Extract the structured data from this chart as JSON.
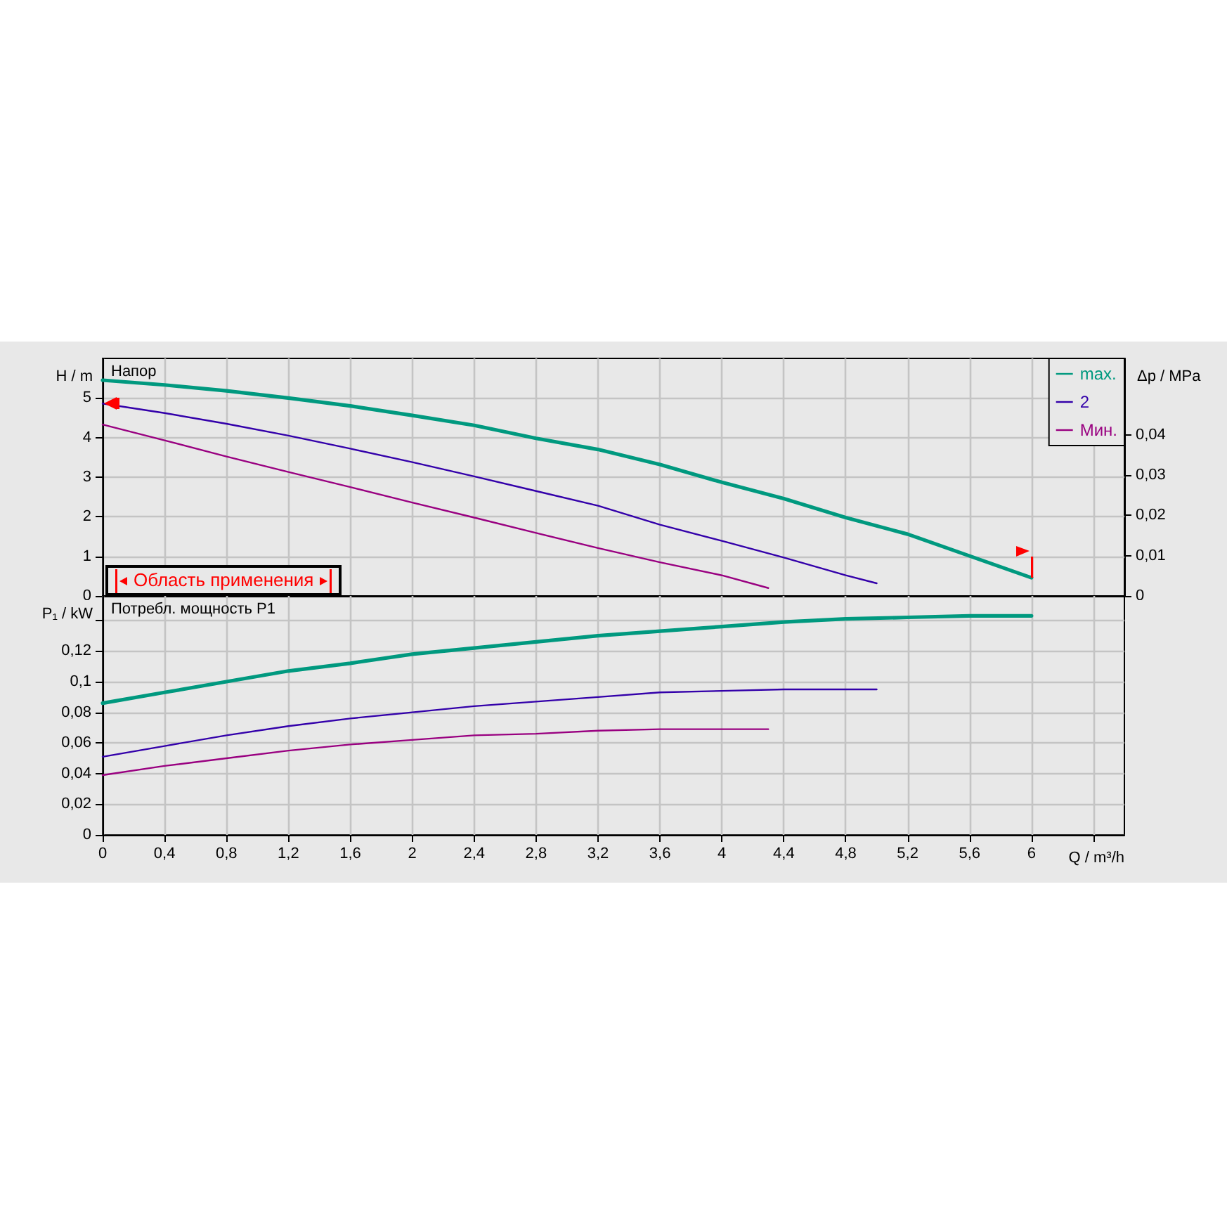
{
  "chart_data": [
    {
      "type": "line",
      "title": "Напор",
      "ylabel": "H / m",
      "y2label": "Δp / MPa",
      "annotations": [
        "Область применения"
      ],
      "series": [
        {
          "name": "max.",
          "color": "#00997f",
          "x": [
            0,
            0.4,
            0.8,
            1.2,
            1.6,
            2,
            2.4,
            2.8,
            3.2,
            3.6,
            4,
            4.4,
            4.8,
            5.2,
            5.6,
            6
          ],
          "values": [
            5.45,
            5.33,
            5.18,
            5.0,
            4.8,
            4.56,
            4.31,
            3.98,
            3.7,
            3.32,
            2.87,
            2.46,
            1.98,
            1.56,
            1.01,
            0.46
          ]
        },
        {
          "name": "2",
          "color": "#3300aa",
          "x": [
            0,
            0.4,
            0.8,
            1.2,
            1.6,
            2,
            2.4,
            2.8,
            3.2,
            3.6,
            4,
            4.4,
            4.8,
            5
          ],
          "values": [
            4.86,
            4.62,
            4.35,
            4.05,
            3.72,
            3.38,
            3.02,
            2.65,
            2.28,
            1.8,
            1.39,
            0.97,
            0.52,
            0.32
          ]
        },
        {
          "name": "Мин.",
          "color": "#990080",
          "x": [
            0,
            0.4,
            0.8,
            1.2,
            1.6,
            2,
            2.4,
            2.8,
            3.2,
            3.6,
            4,
            4.3
          ],
          "values": [
            4.33,
            3.93,
            3.52,
            3.13,
            2.75,
            2.36,
            1.98,
            1.59,
            1.21,
            0.85,
            0.52,
            0.2
          ]
        }
      ],
      "xlim": [
        0,
        6.6
      ],
      "xticks": [
        0,
        0.4,
        0.8,
        1.2,
        1.6,
        2,
        2.4,
        2.8,
        3.2,
        3.6,
        4,
        4.4,
        4.8,
        5.2,
        5.6,
        6,
        6.4
      ],
      "ylim": [
        0,
        6
      ],
      "yticks": [
        0,
        1,
        2,
        3,
        4,
        5
      ],
      "y2lim": [
        0,
        0.059
      ],
      "y2ticks": [
        0,
        {
          "value": 0.01,
          "label": "0,01"
        },
        {
          "value": 0.02,
          "label": "0,02"
        },
        {
          "value": 0.03,
          "label": "0,03"
        },
        {
          "value": 0.04,
          "label": "0,04"
        }
      ],
      "grid": true,
      "legend": "top right",
      "marker": "none",
      "tick_labels": "y"
    },
    {
      "type": "line",
      "title": "Потребл. мощность P1",
      "xlabel": "Q / m³/h",
      "ylabel": "P₁ / kW",
      "series": [
        {
          "color": "#00997f",
          "x": [
            0,
            0.4,
            0.8,
            1.2,
            1.6,
            2,
            2.4,
            2.8,
            3.2,
            3.6,
            4,
            4.4,
            4.8,
            5.2,
            5.6,
            6
          ],
          "values": [
            0.086,
            0.093,
            0.1,
            0.107,
            0.112,
            0.118,
            0.122,
            0.126,
            0.13,
            0.133,
            0.136,
            0.139,
            0.141,
            0.142,
            0.143,
            0.143
          ]
        },
        {
          "color": "#3300aa",
          "x": [
            0,
            0.4,
            0.8,
            1.2,
            1.6,
            2,
            2.4,
            2.8,
            3.2,
            3.6,
            4,
            4.4,
            4.8,
            5
          ],
          "values": [
            0.051,
            0.058,
            0.065,
            0.071,
            0.076,
            0.08,
            0.084,
            0.087,
            0.09,
            0.093,
            0.094,
            0.095,
            0.095,
            0.095
          ]
        },
        {
          "color": "#990080",
          "x": [
            0,
            0.4,
            0.8,
            1.2,
            1.6,
            2,
            2.4,
            2.8,
            3.2,
            3.6,
            4,
            4.3
          ],
          "values": [
            0.039,
            0.045,
            0.05,
            0.055,
            0.059,
            0.062,
            0.065,
            0.066,
            0.068,
            0.069,
            0.069,
            0.069
          ]
        }
      ],
      "xlim": [
        0,
        6.6
      ],
      "xticks": [
        0,
        {
          "value": 0.4,
          "label": "0,4"
        },
        {
          "value": 0.8,
          "label": "0,8"
        },
        {
          "value": 1.2,
          "label": "1,2"
        },
        {
          "value": 1.6,
          "label": "1,6"
        },
        2,
        {
          "value": 2.4,
          "label": "2,4"
        },
        {
          "value": 2.8,
          "label": "2,8"
        },
        {
          "value": 3.2,
          "label": "3,2"
        },
        {
          "value": 3.6,
          "label": "3,6"
        },
        4,
        {
          "value": 4.4,
          "label": "4,4"
        },
        {
          "value": 4.8,
          "label": "4,8"
        },
        {
          "value": 5.2,
          "label": "5,2"
        },
        {
          "value": 5.6,
          "label": "5,6"
        },
        6,
        {
          "value": 6.4,
          "label": null
        }
      ],
      "ylim": [
        0,
        0.156
      ],
      "yticks": [
        0,
        {
          "value": 0.02,
          "label": "0,02"
        },
        {
          "value": 0.04,
          "label": "0,04"
        },
        {
          "value": 0.06,
          "label": "0,06"
        },
        {
          "value": 0.08,
          "label": "0,08"
        },
        {
          "value": 0.1,
          "label": "0,1"
        },
        {
          "value": 0.12,
          "label": "0,12"
        },
        {
          "value": 0.14,
          "label": null
        }
      ],
      "grid": true,
      "marker": "none"
    }
  ]
}
